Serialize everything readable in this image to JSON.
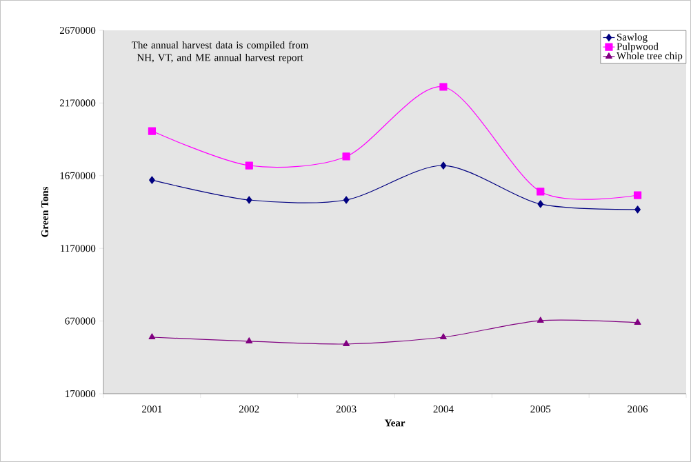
{
  "chart_data": {
    "type": "line",
    "xlabel": "Year",
    "ylabel": "Green Tons",
    "categories": [
      "2001",
      "2002",
      "2003",
      "2004",
      "2005",
      "2006"
    ],
    "series": [
      {
        "name": "Sawlog",
        "color": "#000080",
        "marker": "diamond",
        "values": [
          1640000,
          1503000,
          1503000,
          1740000,
          1475000,
          1437000
        ]
      },
      {
        "name": "Pulpwood",
        "color": "#ff00ff",
        "marker": "square",
        "values": [
          1977000,
          1740000,
          1802000,
          2281000,
          1560000,
          1536000
        ]
      },
      {
        "name": "Whole tree chip",
        "color": "#800080",
        "marker": "triangle",
        "values": [
          559000,
          531000,
          512000,
          559000,
          673000,
          659000
        ]
      }
    ],
    "ylim": [
      170000,
      2670000
    ],
    "yticks": [
      170000,
      670000,
      1170000,
      1670000,
      2170000,
      2670000
    ],
    "grid": false,
    "legend": "top right",
    "line_style": "solid",
    "annotations": [
      "The annual harvest data is compiled from NH, VT, and ME annual harvest report"
    ]
  }
}
